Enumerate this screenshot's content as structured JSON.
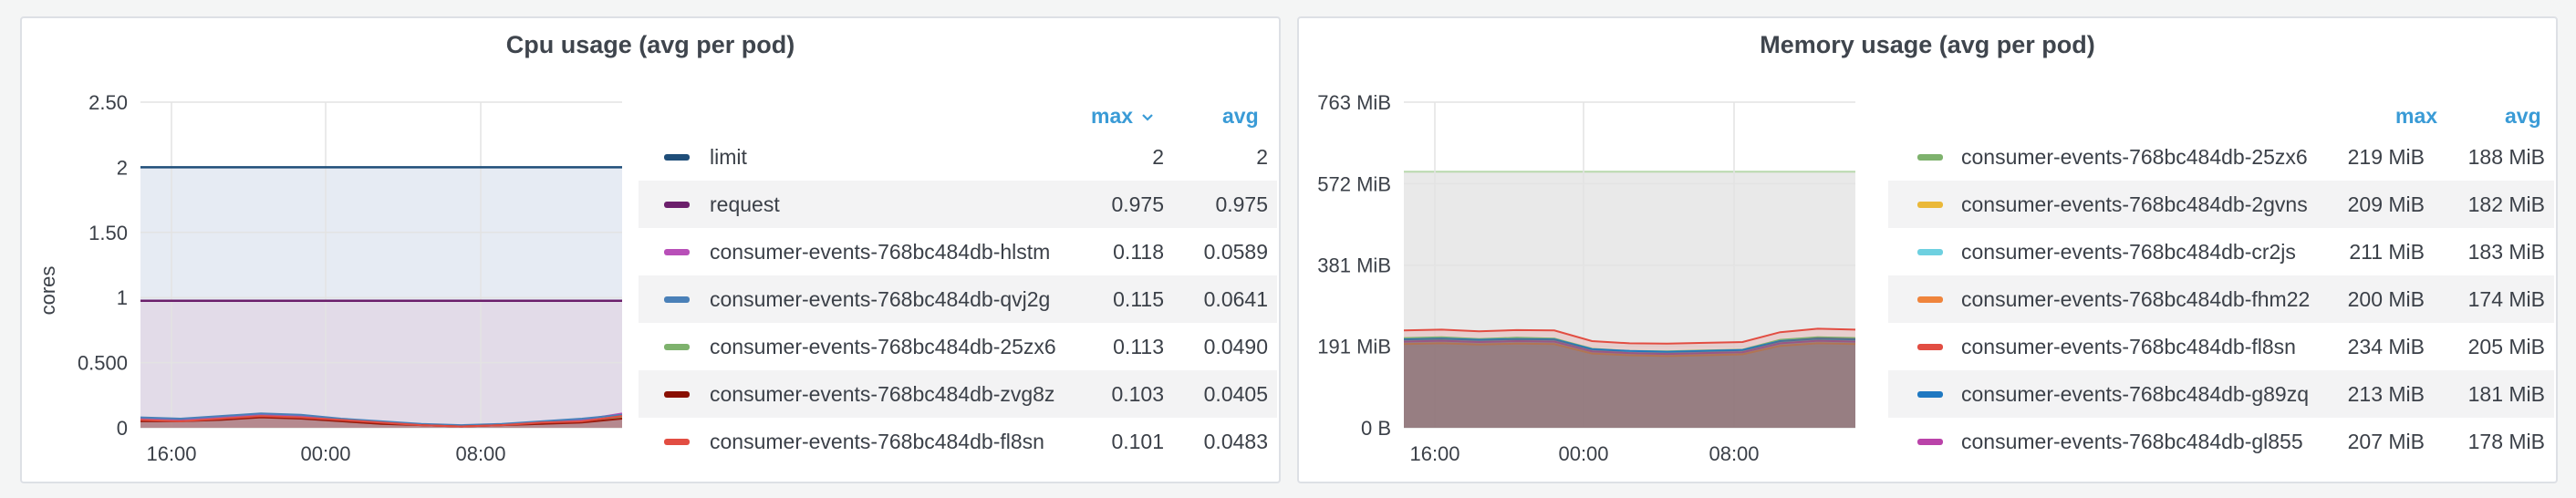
{
  "panels": [
    {
      "title": "Cpu usage (avg per pod)",
      "legend_headers": {
        "max": "max",
        "avg": "avg"
      },
      "legend_sort_icon": "chevron-down-icon",
      "legend": [
        {
          "name": "limit",
          "color": "#1f4e79",
          "max": "2",
          "avg": "2"
        },
        {
          "name": "request",
          "color": "#6b1f6b",
          "max": "0.975",
          "avg": "0.975"
        },
        {
          "name": "consumer-events-768bc484db-hlstm",
          "color": "#b84fb8",
          "max": "0.118",
          "avg": "0.0589"
        },
        {
          "name": "consumer-events-768bc484db-qvj2g",
          "color": "#4a80b8",
          "max": "0.115",
          "avg": "0.0641"
        },
        {
          "name": "consumer-events-768bc484db-25zx6",
          "color": "#7eb26d",
          "max": "0.113",
          "avg": "0.0490"
        },
        {
          "name": "consumer-events-768bc484db-zvg8z",
          "color": "#890f02",
          "max": "0.103",
          "avg": "0.0405"
        },
        {
          "name": "consumer-events-768bc484db-fl8sn",
          "color": "#e24d42",
          "max": "0.101",
          "avg": "0.0483"
        }
      ]
    },
    {
      "title": "Memory usage (avg per pod)",
      "legend_headers": {
        "max": "max",
        "avg": "avg"
      },
      "legend": [
        {
          "name": "consumer-events-768bc484db-25zx6",
          "color": "#7eb26d",
          "max": "219 MiB",
          "avg": "188 MiB"
        },
        {
          "name": "consumer-events-768bc484db-2gvns",
          "color": "#eab839",
          "max": "209 MiB",
          "avg": "182 MiB"
        },
        {
          "name": "consumer-events-768bc484db-cr2js",
          "color": "#6ed0e0",
          "max": "211 MiB",
          "avg": "183 MiB"
        },
        {
          "name": "consumer-events-768bc484db-fhm22",
          "color": "#ef843c",
          "max": "200 MiB",
          "avg": "174 MiB"
        },
        {
          "name": "consumer-events-768bc484db-fl8sn",
          "color": "#e24d42",
          "max": "234 MiB",
          "avg": "205 MiB"
        },
        {
          "name": "consumer-events-768bc484db-g89zq",
          "color": "#1f78c1",
          "max": "213 MiB",
          "avg": "181 MiB"
        },
        {
          "name": "consumer-events-768bc484db-gl855",
          "color": "#ba43a9",
          "max": "207 MiB",
          "avg": "178 MiB"
        }
      ]
    }
  ],
  "chart_data": [
    {
      "type": "line",
      "title": "Cpu usage (avg per pod)",
      "ylabel": "cores",
      "xlabel": "",
      "x_ticks": [
        "16:00",
        "00:00",
        "08:00"
      ],
      "y_ticks": [
        "0",
        "0.500",
        "1",
        "1.50",
        "2",
        "2.50"
      ],
      "ylim": [
        0,
        2.5
      ],
      "grid": true,
      "legend_position": "right",
      "series": [
        {
          "name": "limit",
          "values": [
            2,
            2,
            2,
            2,
            2,
            2,
            2,
            2,
            2,
            2,
            2,
            2,
            2
          ]
        },
        {
          "name": "request",
          "values": [
            0.975,
            0.975,
            0.975,
            0.975,
            0.975,
            0.975,
            0.975,
            0.975,
            0.975,
            0.975,
            0.975,
            0.975,
            0.975
          ]
        },
        {
          "name": "consumer-events-768bc484db-hlstm",
          "values": [
            0.07,
            0.06,
            0.08,
            0.1,
            0.09,
            0.06,
            0.04,
            0.02,
            0.01,
            0.02,
            0.04,
            0.06,
            0.11
          ]
        },
        {
          "name": "consumer-events-768bc484db-qvj2g",
          "values": [
            0.08,
            0.07,
            0.09,
            0.11,
            0.1,
            0.07,
            0.05,
            0.03,
            0.02,
            0.03,
            0.05,
            0.07,
            0.1
          ]
        },
        {
          "name": "consumer-events-768bc484db-25zx6",
          "values": [
            0.06,
            0.05,
            0.07,
            0.09,
            0.08,
            0.05,
            0.03,
            0.02,
            0.01,
            0.02,
            0.03,
            0.05,
            0.08
          ]
        },
        {
          "name": "consumer-events-768bc484db-zvg8z",
          "values": [
            0.05,
            0.05,
            0.06,
            0.08,
            0.07,
            0.05,
            0.03,
            0.02,
            0.01,
            0.02,
            0.03,
            0.04,
            0.07
          ]
        },
        {
          "name": "consumer-events-768bc484db-fl8sn",
          "values": [
            0.06,
            0.05,
            0.07,
            0.09,
            0.08,
            0.06,
            0.04,
            0.02,
            0.01,
            0.02,
            0.04,
            0.05,
            0.09
          ]
        }
      ]
    },
    {
      "type": "area",
      "title": "Memory usage (avg per pod)",
      "xlabel": "",
      "ylabel": "",
      "x_ticks": [
        "16:00",
        "00:00",
        "08:00"
      ],
      "y_ticks": [
        "0 B",
        "191 MiB",
        "381 MiB",
        "572 MiB",
        "763 MiB"
      ],
      "ylim": [
        0,
        763
      ],
      "grid": true,
      "legend_position": "right",
      "limit_line_mib": 600,
      "series": [
        {
          "name": "consumer-events-768bc484db-25zx6",
          "values": [
            210,
            212,
            208,
            211,
            209,
            185,
            180,
            179,
            181,
            183,
            206,
            212,
            210
          ]
        },
        {
          "name": "consumer-events-768bc484db-2gvns",
          "values": [
            205,
            207,
            204,
            206,
            205,
            182,
            178,
            176,
            178,
            180,
            201,
            207,
            205
          ]
        },
        {
          "name": "consumer-events-768bc484db-cr2js",
          "values": [
            206,
            208,
            205,
            207,
            206,
            183,
            179,
            177,
            179,
            181,
            202,
            208,
            206
          ]
        },
        {
          "name": "consumer-events-768bc484db-fhm22",
          "values": [
            196,
            198,
            195,
            197,
            196,
            174,
            170,
            168,
            170,
            172,
            192,
            198,
            196
          ]
        },
        {
          "name": "consumer-events-768bc484db-fl8sn",
          "values": [
            228,
            230,
            226,
            229,
            228,
            203,
            198,
            197,
            199,
            201,
            224,
            232,
            230
          ]
        },
        {
          "name": "consumer-events-768bc484db-g89zq",
          "values": [
            207,
            209,
            206,
            208,
            207,
            184,
            180,
            178,
            180,
            182,
            203,
            209,
            207
          ]
        },
        {
          "name": "consumer-events-768bc484db-gl855",
          "values": [
            202,
            204,
            201,
            203,
            202,
            179,
            175,
            173,
            175,
            177,
            198,
            204,
            202
          ]
        }
      ]
    }
  ]
}
